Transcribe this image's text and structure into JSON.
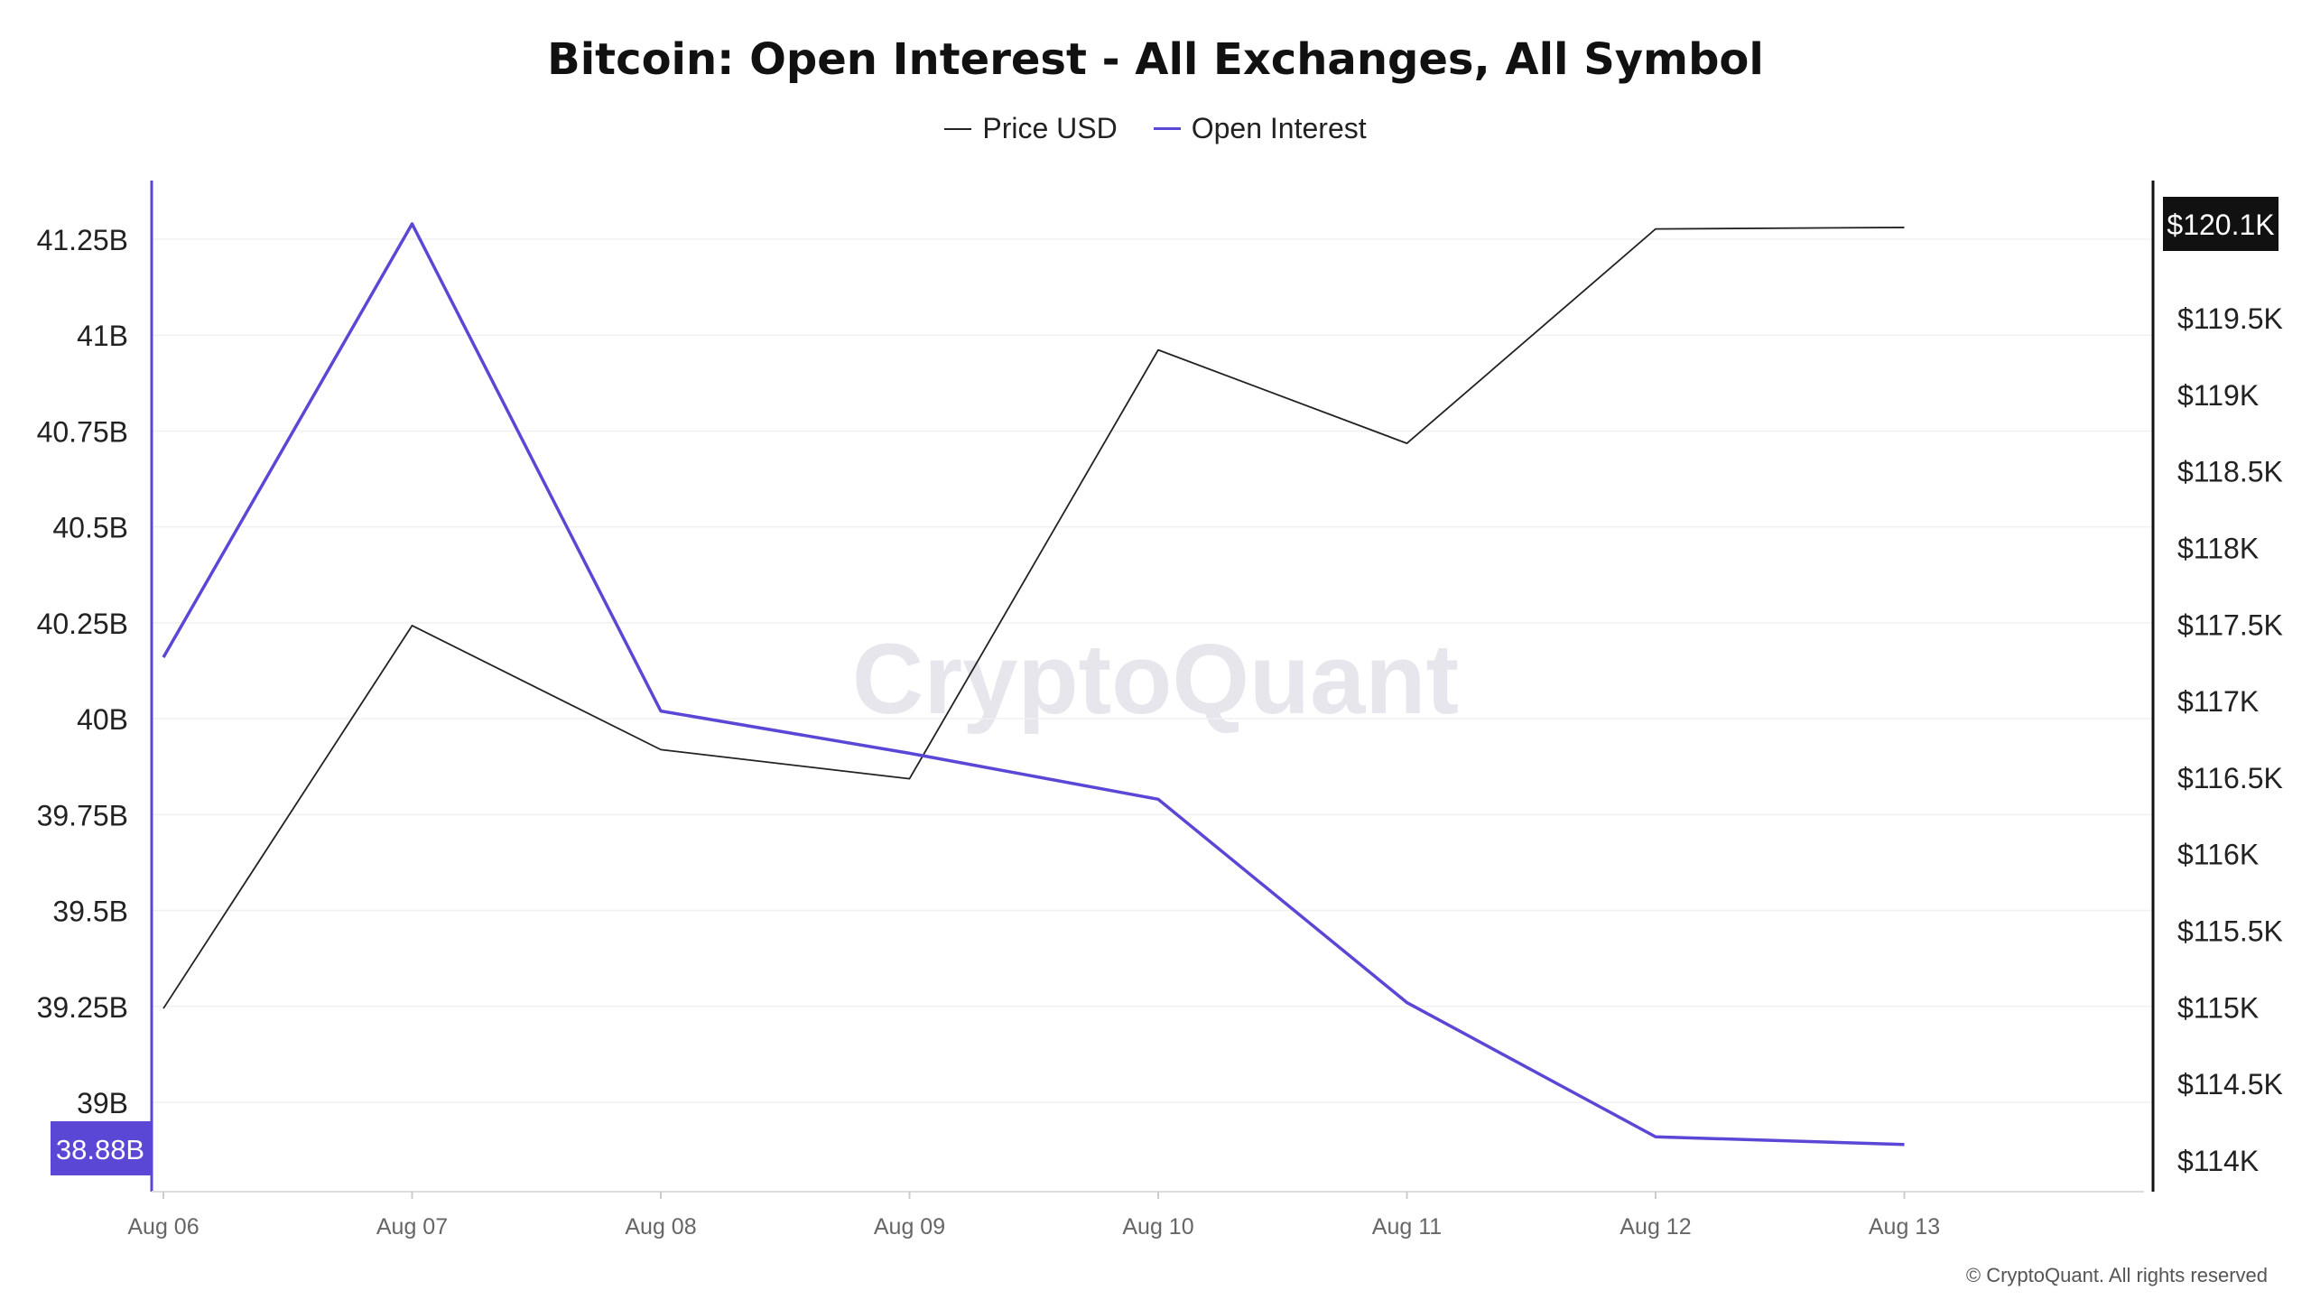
{
  "chart_data": {
    "type": "line",
    "title": "Bitcoin: Open Interest - All Exchanges, All Symbol",
    "x": [
      "Aug 06",
      "Aug 07",
      "Aug 08",
      "Aug 09",
      "Aug 10",
      "Aug 11",
      "Aug 12",
      "Aug 13"
    ],
    "series": [
      {
        "name": "Price USD",
        "axis": "right",
        "color": "#222222",
        "values": [
          114990,
          117490,
          116680,
          116490,
          119290,
          118680,
          120080,
          120090
        ]
      },
      {
        "name": "Open Interest",
        "axis": "left",
        "color": "#5b47d6",
        "values": [
          40.16,
          41.29,
          40.02,
          39.91,
          39.79,
          39.26,
          38.91,
          38.89
        ]
      }
    ],
    "y_left": {
      "ticks": [
        39,
        39.25,
        39.5,
        39.75,
        40,
        40.25,
        40.5,
        40.75,
        41,
        41.25
      ],
      "tick_labels": [
        "39B",
        "39.25B",
        "39.5B",
        "39.75B",
        "40B",
        "40.25B",
        "40.5B",
        "40.75B",
        "41B",
        "41.25B"
      ],
      "current_label": "38.88B",
      "current_value": 38.88
    },
    "y_right": {
      "ticks": [
        114000,
        114500,
        115000,
        115500,
        116000,
        116500,
        117000,
        117500,
        118000,
        118500,
        119000,
        119500
      ],
      "tick_labels": [
        "$114K",
        "$114.5K",
        "$115K",
        "$115.5K",
        "$116K",
        "$116.5K",
        "$117K",
        "$117.5K",
        "$118K",
        "$118.5K",
        "$119K",
        "$119.5K"
      ],
      "current_label": "$120.1K",
      "current_value": 120100
    },
    "grid": true,
    "legend_position": "top-center",
    "watermark": "CryptoQuant"
  },
  "footer": "© CryptoQuant. All rights reserved"
}
